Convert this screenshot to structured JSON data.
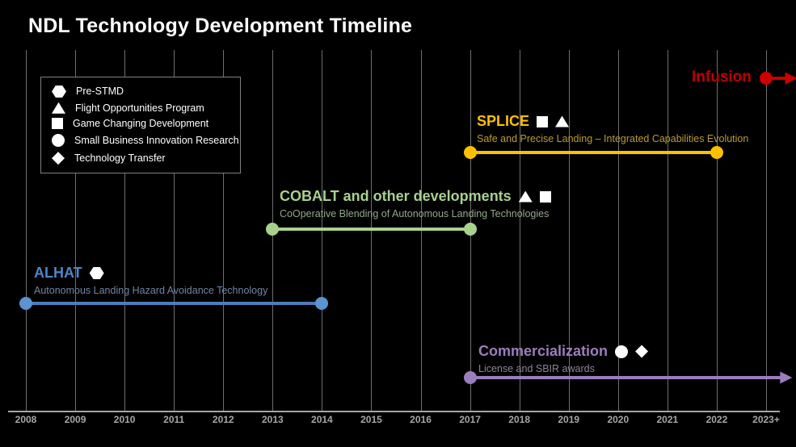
{
  "page": {
    "title": "NDL Technology Development Timeline"
  },
  "legend": {
    "items": [
      {
        "symbol": "hexagon",
        "label": "Pre-STMD"
      },
      {
        "symbol": "triangle",
        "label": "Flight Opportunities Program"
      },
      {
        "symbol": "square",
        "label": "Game Changing Development"
      },
      {
        "symbol": "circle",
        "label": "Small Business Innovation Research"
      },
      {
        "symbol": "diamond",
        "label": "Technology Transfer"
      }
    ]
  },
  "chart_data": {
    "type": "timeline",
    "title": "NDL Technology Development Timeline",
    "x_axis": {
      "tick_labels": [
        "2008",
        "2009",
        "2010",
        "2011",
        "2012",
        "2013",
        "2014",
        "2015",
        "2016",
        "2017",
        "2018",
        "2019",
        "2020",
        "2021",
        "2022",
        "2023+"
      ],
      "range": [
        2008,
        2023
      ],
      "grid": true
    },
    "colors": {
      "background": "#000000",
      "gridline": "#6e6e6e",
      "axis": "#a6a6a6"
    },
    "projects": [
      {
        "name": "ALHAT",
        "subtitle": "Autonomous Landing Hazard Avoidance Technology",
        "symbols": [
          "hexagon"
        ],
        "start_year": 2008,
        "end_year": 2014,
        "start_cap": "circle",
        "end_cap": "circle",
        "line_color": "#4a7ebb",
        "cap_color": "#5b94d0",
        "title_color": "#4d86c8",
        "subtitle_color": "#6d86a6"
      },
      {
        "name": "COBALT and other developments",
        "subtitle": "CoOperative Blending of Autonomous Landing Technologies",
        "symbols": [
          "triangle",
          "square"
        ],
        "start_year": 2013,
        "end_year": 2017,
        "start_cap": "circle",
        "end_cap": "circle",
        "line_color": "#a9d18e",
        "cap_color": "#a9d18e",
        "title_color": "#a9d18e",
        "subtitle_color": "#93a88a"
      },
      {
        "name": "SPLICE",
        "subtitle": "Safe and Precise Landing – Integrated Capabilities Evolution",
        "symbols": [
          "square",
          "triangle"
        ],
        "start_year": 2017,
        "end_year": 2022,
        "start_cap": "circle",
        "end_cap": "circle",
        "line_color": "#ffc000",
        "cap_color": "#ffc000",
        "title_color": "#ffc000",
        "subtitle_color": "#bd9b2f"
      },
      {
        "name": "Commercialization",
        "subtitle": "License and SBIR awards",
        "symbols": [
          "circle",
          "diamond"
        ],
        "start_year": 2017,
        "end_year": 2023.3,
        "start_cap": "circle",
        "end_cap": "arrow",
        "line_color": "#9b7ebd",
        "cap_color": "#9b7ebd",
        "title_color": "#9b7ebd",
        "subtitle_color": "#8f8598"
      },
      {
        "name": "Infusion",
        "subtitle": "",
        "symbols": [],
        "start_year": 2023,
        "end_year": 2023.4,
        "start_cap": "circle",
        "end_cap": "arrow",
        "line_color": "#cc0000",
        "cap_color": "#cc0000",
        "title_color": "#c00000",
        "subtitle_color": "#c00000"
      }
    ]
  }
}
